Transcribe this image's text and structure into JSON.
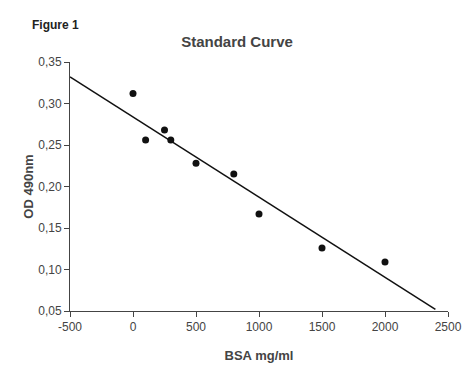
{
  "chart_data": {
    "type": "scatter",
    "title": "Standard Curve",
    "annotations": [
      "Figure 1"
    ],
    "xlabel": "BSA mg/ml",
    "ylabel": "OD 490nm",
    "series": [
      {
        "type": "line",
        "x": [
          -500,
          2400
        ],
        "values": [
          0.332,
          0.052
        ],
        "color": "#111111"
      },
      {
        "type": "scatter",
        "x": [
          0,
          100,
          250,
          300,
          500,
          800,
          1000,
          1500,
          2000
        ],
        "values": [
          0.312,
          0.256,
          0.268,
          0.256,
          0.228,
          0.215,
          0.167,
          0.126,
          0.109
        ],
        "color": "#111111"
      }
    ],
    "xlim": [
      -500,
      2500
    ],
    "ylim": [
      0.05,
      0.35
    ],
    "xticks": [
      -500,
      0,
      500,
      1000,
      1500,
      2000,
      2500
    ],
    "yticks": [
      {
        "value": 0.05,
        "label": "0,05"
      },
      {
        "value": 0.1,
        "label": "0,10"
      },
      {
        "value": 0.15,
        "label": "0,15"
      },
      {
        "value": 0.2,
        "label": "0,20"
      },
      {
        "value": 0.25,
        "label": "0,25"
      },
      {
        "value": 0.3,
        "label": "0,30"
      },
      {
        "value": 0.35,
        "label": "0,35"
      }
    ],
    "grid": false
  }
}
